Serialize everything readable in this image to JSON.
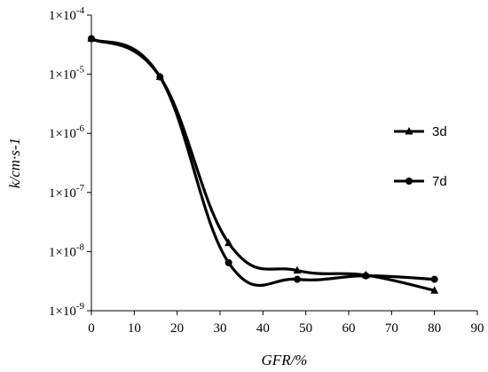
{
  "chart_data": {
    "type": "line",
    "xlabel": "GFR/%",
    "ylabel": "k/cm·s-1",
    "xlim": [
      0,
      90
    ],
    "ylim": [
      1e-09,
      0.0001
    ],
    "yscale": "log",
    "x_ticks": [
      0,
      10,
      20,
      30,
      40,
      50,
      60,
      70,
      80,
      90
    ],
    "y_ticks": [
      {
        "value": 0.0001,
        "exp": "-4"
      },
      {
        "value": 1e-05,
        "exp": "-5"
      },
      {
        "value": 1e-06,
        "exp": "-6"
      },
      {
        "value": 1e-07,
        "exp": "-7"
      },
      {
        "value": 1e-08,
        "exp": "-8"
      },
      {
        "value": 1e-09,
        "exp": "-9"
      }
    ],
    "y_tick_mantissa": "1×10",
    "grid": false,
    "legend_position": "right",
    "series": [
      {
        "name": "3d",
        "marker": "triangle",
        "x": [
          0,
          16,
          32,
          48,
          64,
          80
        ],
        "y": [
          4e-05,
          9e-06,
          1.4e-08,
          4.8e-09,
          4e-09,
          2.2e-09
        ]
      },
      {
        "name": "7d",
        "marker": "circle",
        "x": [
          0,
          16,
          32,
          48,
          64,
          80
        ],
        "y": [
          4e-05,
          9e-06,
          6.5e-09,
          3.4e-09,
          3.9e-09,
          3.4e-09
        ]
      }
    ]
  }
}
